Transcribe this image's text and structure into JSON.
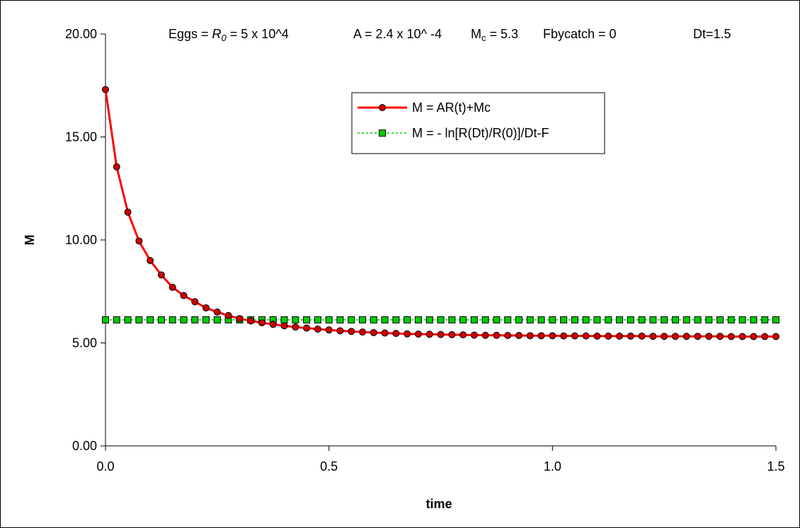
{
  "chart_data": {
    "type": "line",
    "title": "",
    "annotation": {
      "eggs_label": "Eggs = ",
      "r_symbol": "R",
      "r_sub": "0",
      "eggs_value": " = 5 x 10^4",
      "a_text": "A = 2.4 x 10^ -4",
      "mc_symbol": "M",
      "mc_sub": "c",
      "mc_value": " = 5.3",
      "fbycatch_text": "Fbycatch = 0",
      "dt_text": "Dt=1.5"
    },
    "xlabel": "time",
    "ylabel": "M",
    "xlim": [
      0,
      1.5
    ],
    "ylim": [
      0,
      20
    ],
    "x_ticks": [
      "0.0",
      "0.5",
      "1.0",
      "1.5"
    ],
    "x_tick_values": [
      0,
      0.5,
      1.0,
      1.5
    ],
    "y_ticks": [
      "0.00",
      "5.00",
      "10.00",
      "15.00",
      "20.00"
    ],
    "y_tick_values": [
      0,
      5,
      10,
      15,
      20
    ],
    "grid": false,
    "legend_position": "top-center",
    "series": [
      {
        "name": "M = AR(t)+Mc",
        "color": "#ff0000",
        "marker": "circle",
        "marker_fill": "#cc0000",
        "line_style": "solid",
        "x": [
          0,
          0.025,
          0.05,
          0.075,
          0.1,
          0.125,
          0.15,
          0.175,
          0.2,
          0.225,
          0.25,
          0.275,
          0.3,
          0.325,
          0.35,
          0.375,
          0.4,
          0.425,
          0.45,
          0.475,
          0.5,
          0.525,
          0.55,
          0.575,
          0.6,
          0.625,
          0.65,
          0.675,
          0.7,
          0.725,
          0.75,
          0.775,
          0.8,
          0.825,
          0.85,
          0.875,
          0.9,
          0.925,
          0.95,
          0.975,
          1.0,
          1.025,
          1.05,
          1.075,
          1.1,
          1.125,
          1.15,
          1.175,
          1.2,
          1.225,
          1.25,
          1.275,
          1.3,
          1.325,
          1.35,
          1.375,
          1.4,
          1.425,
          1.45,
          1.475,
          1.5
        ],
        "values": [
          17.3,
          13.55,
          11.35,
          9.95,
          9.0,
          8.3,
          7.7,
          7.3,
          7.0,
          6.7,
          6.5,
          6.33,
          6.18,
          6.07,
          5.98,
          5.9,
          5.83,
          5.77,
          5.72,
          5.67,
          5.63,
          5.59,
          5.56,
          5.53,
          5.5,
          5.48,
          5.46,
          5.44,
          5.43,
          5.42,
          5.41,
          5.4,
          5.39,
          5.38,
          5.37,
          5.37,
          5.36,
          5.36,
          5.35,
          5.35,
          5.35,
          5.34,
          5.34,
          5.34,
          5.33,
          5.33,
          5.33,
          5.33,
          5.33,
          5.32,
          5.32,
          5.32,
          5.32,
          5.32,
          5.32,
          5.32,
          5.31,
          5.31,
          5.31,
          5.31,
          5.31
        ]
      },
      {
        "name": "M = - ln[R(Dt)/R(0)]/Dt-F",
        "color": "#00cc00",
        "marker": "square",
        "marker_fill": "#00cc00",
        "line_style": "dotted",
        "x": [
          0,
          0.025,
          0.05,
          0.075,
          0.1,
          0.125,
          0.15,
          0.175,
          0.2,
          0.225,
          0.25,
          0.275,
          0.3,
          0.325,
          0.35,
          0.375,
          0.4,
          0.425,
          0.45,
          0.475,
          0.5,
          0.525,
          0.55,
          0.575,
          0.6,
          0.625,
          0.65,
          0.675,
          0.7,
          0.725,
          0.75,
          0.775,
          0.8,
          0.825,
          0.85,
          0.875,
          0.9,
          0.925,
          0.95,
          0.975,
          1.0,
          1.025,
          1.05,
          1.075,
          1.1,
          1.125,
          1.15,
          1.175,
          1.2,
          1.225,
          1.25,
          1.275,
          1.3,
          1.325,
          1.35,
          1.375,
          1.4,
          1.425,
          1.45,
          1.475,
          1.5
        ],
        "values": [
          6.12,
          6.12,
          6.12,
          6.12,
          6.12,
          6.12,
          6.12,
          6.12,
          6.12,
          6.12,
          6.12,
          6.12,
          6.12,
          6.12,
          6.12,
          6.12,
          6.12,
          6.12,
          6.12,
          6.12,
          6.12,
          6.12,
          6.12,
          6.12,
          6.12,
          6.12,
          6.12,
          6.12,
          6.12,
          6.12,
          6.12,
          6.12,
          6.12,
          6.12,
          6.12,
          6.12,
          6.12,
          6.12,
          6.12,
          6.12,
          6.12,
          6.12,
          6.12,
          6.12,
          6.12,
          6.12,
          6.12,
          6.12,
          6.12,
          6.12,
          6.12,
          6.12,
          6.12,
          6.12,
          6.12,
          6.12,
          6.12,
          6.12,
          6.12,
          6.12,
          6.12
        ]
      }
    ]
  }
}
